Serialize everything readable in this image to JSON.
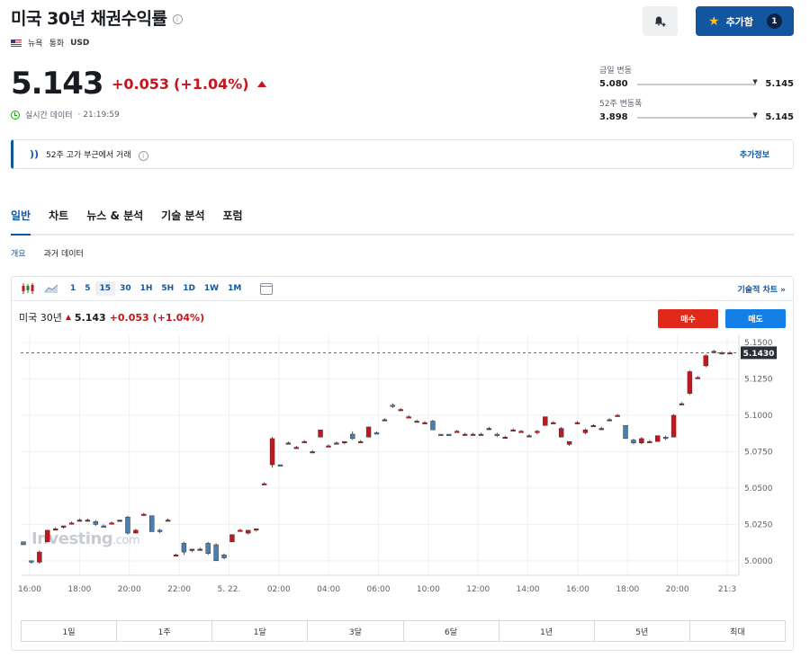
{
  "header": {
    "title": "미국 30년 채권수익률",
    "exchange": "뉴욕",
    "currency_label": "통화",
    "currency": "USD",
    "favorite_label": "추가함",
    "favorite_count": "1"
  },
  "quote": {
    "price": "5.143",
    "change": "+0.053",
    "change_pct": "(+1.04%)",
    "realtime_label": "실시간 데이터",
    "time": "· 21:19:59"
  },
  "ranges": {
    "day": {
      "label": "금일 변동",
      "low": "5.080",
      "high": "5.145",
      "position": 1.0
    },
    "week52": {
      "label": "52주 변동폭",
      "low": "3.898",
      "high": "5.145",
      "position": 1.0
    }
  },
  "alert": {
    "text": "52주 고가 부근에서 거래",
    "more": "추가정보"
  },
  "tabs": [
    "일반",
    "차트",
    "뉴스 & 분석",
    "기술 분석",
    "포럼"
  ],
  "sub_tabs": [
    "개요",
    "과거 데이터"
  ],
  "toolbar": {
    "timeframes": [
      "1",
      "5",
      "15",
      "30",
      "1H",
      "5H",
      "1D",
      "1W",
      "1M"
    ],
    "selected_timeframe": "15",
    "tech_chart": "기술적 차트 »"
  },
  "chart_header": {
    "name": "미국 30년",
    "price": "5.143",
    "change": "+0.053",
    "change_pct": "(+1.04%)",
    "buy": "매수",
    "sell": "매도"
  },
  "watermark": {
    "brand": "Investing",
    "suffix": ".com"
  },
  "periods": [
    "1일",
    "1주",
    "1달",
    "3달",
    "6달",
    "1년",
    "5년",
    "최대"
  ],
  "colors": {
    "up": "#c4161c",
    "down": "#4a7fb5",
    "accent": "#1256a0"
  },
  "chart_data": {
    "type": "candlestick",
    "interval": "15",
    "x_ticks": [
      "16:00",
      "18:00",
      "20:00",
      "22:00",
      "5. 22.",
      "02:00",
      "04:00",
      "06:00",
      "10:00",
      "12:00",
      "14:00",
      "16:00",
      "18:00",
      "20:00",
      "21:3"
    ],
    "y_ticks": [
      "5.0000",
      "5.0250",
      "5.0500",
      "5.0750",
      "5.1000",
      "5.1250",
      "5.1500"
    ],
    "ylim": [
      4.99,
      5.155
    ],
    "last_price_label": "5.1430",
    "ohlc": [
      [
        5.013,
        5.013,
        5.011,
        5.011
      ],
      [
        5.0,
        5.0,
        4.998,
        4.999
      ],
      [
        4.999,
        5.007,
        4.998,
        5.006
      ],
      [
        5.013,
        5.021,
        5.013,
        5.021
      ],
      [
        5.021,
        5.023,
        5.021,
        5.022
      ],
      [
        5.023,
        5.024,
        5.022,
        5.024
      ],
      [
        5.026,
        5.027,
        5.025,
        5.026
      ],
      [
        5.028,
        5.029,
        5.027,
        5.028
      ],
      [
        5.028,
        5.029,
        5.028,
        5.028
      ],
      [
        5.027,
        5.028,
        5.024,
        5.025
      ],
      [
        5.024,
        5.025,
        5.023,
        5.023
      ],
      [
        5.026,
        5.027,
        5.025,
        5.026
      ],
      [
        5.027,
        5.028,
        5.027,
        5.028
      ],
      [
        5.03,
        5.031,
        5.018,
        5.019
      ],
      [
        5.019,
        5.022,
        5.019,
        5.021
      ],
      [
        5.032,
        5.033,
        5.031,
        5.032
      ],
      [
        5.031,
        5.031,
        5.02,
        5.02
      ],
      [
        5.021,
        5.022,
        5.019,
        5.02
      ],
      [
        5.028,
        5.029,
        5.028,
        5.028
      ],
      [
        5.004,
        5.005,
        5.003,
        5.004
      ],
      [
        5.012,
        5.013,
        5.004,
        5.006
      ],
      [
        5.007,
        5.008,
        5.006,
        5.008
      ],
      [
        5.008,
        5.009,
        5.007,
        5.008
      ],
      [
        5.012,
        5.013,
        5.004,
        5.005
      ],
      [
        5.011,
        5.012,
        5.0,
        5.0
      ],
      [
        5.004,
        5.005,
        5.001,
        5.002
      ],
      [
        5.013,
        5.018,
        5.013,
        5.018
      ],
      [
        5.021,
        5.022,
        5.02,
        5.021
      ],
      [
        5.019,
        5.021,
        5.018,
        5.021
      ],
      [
        5.021,
        5.022,
        5.02,
        5.022
      ],
      [
        5.053,
        5.054,
        5.052,
        5.053
      ],
      [
        5.066,
        5.085,
        5.064,
        5.084
      ],
      [
        5.066,
        5.066,
        5.065,
        5.065
      ],
      [
        5.081,
        5.082,
        5.08,
        5.081
      ],
      [
        5.078,
        5.079,
        5.077,
        5.078
      ],
      [
        5.082,
        5.083,
        5.081,
        5.082
      ],
      [
        5.075,
        5.076,
        5.074,
        5.075
      ],
      [
        5.085,
        5.09,
        5.085,
        5.09
      ],
      [
        5.079,
        5.08,
        5.078,
        5.079
      ],
      [
        5.081,
        5.082,
        5.08,
        5.081
      ],
      [
        5.081,
        5.082,
        5.08,
        5.082
      ],
      [
        5.087,
        5.089,
        5.083,
        5.084
      ],
      [
        5.082,
        5.083,
        5.081,
        5.082
      ],
      [
        5.085,
        5.092,
        5.085,
        5.092
      ],
      [
        5.088,
        5.089,
        5.087,
        5.087
      ],
      [
        5.097,
        5.098,
        5.096,
        5.097
      ],
      [
        5.107,
        5.108,
        5.105,
        5.106
      ],
      [
        5.104,
        5.105,
        5.103,
        5.104
      ],
      [
        5.099,
        5.1,
        5.098,
        5.099
      ],
      [
        5.096,
        5.097,
        5.095,
        5.096
      ],
      [
        5.095,
        5.096,
        5.094,
        5.095
      ],
      [
        5.096,
        5.097,
        5.09,
        5.09
      ],
      [
        5.087,
        5.087,
        5.086,
        5.086
      ],
      [
        5.087,
        5.087,
        5.086,
        5.086
      ],
      [
        5.089,
        5.09,
        5.088,
        5.089
      ],
      [
        5.087,
        5.088,
        5.086,
        5.087
      ],
      [
        5.087,
        5.088,
        5.086,
        5.087
      ],
      [
        5.087,
        5.088,
        5.086,
        5.087
      ],
      [
        5.091,
        5.092,
        5.09,
        5.091
      ],
      [
        5.087,
        5.088,
        5.085,
        5.086
      ],
      [
        5.085,
        5.086,
        5.084,
        5.085
      ],
      [
        5.09,
        5.091,
        5.089,
        5.09
      ],
      [
        5.089,
        5.09,
        5.088,
        5.089
      ],
      [
        5.086,
        5.087,
        5.085,
        5.086
      ],
      [
        5.089,
        5.09,
        5.087,
        5.089
      ],
      [
        5.093,
        5.099,
        5.093,
        5.099
      ],
      [
        5.095,
        5.096,
        5.094,
        5.095
      ],
      [
        5.085,
        5.092,
        5.085,
        5.091
      ],
      [
        5.08,
        5.082,
        5.079,
        5.082
      ],
      [
        5.095,
        5.096,
        5.094,
        5.095
      ],
      [
        5.088,
        5.091,
        5.087,
        5.09
      ],
      [
        5.093,
        5.094,
        5.092,
        5.093
      ],
      [
        5.091,
        5.092,
        5.09,
        5.091
      ],
      [
        5.097,
        5.098,
        5.096,
        5.097
      ],
      [
        5.1,
        5.101,
        5.099,
        5.1
      ],
      [
        5.093,
        5.093,
        5.084,
        5.084
      ],
      [
        5.083,
        5.084,
        5.08,
        5.081
      ],
      [
        5.081,
        5.085,
        5.08,
        5.084
      ],
      [
        5.082,
        5.083,
        5.081,
        5.082
      ],
      [
        5.082,
        5.086,
        5.082,
        5.086
      ],
      [
        5.085,
        5.086,
        5.083,
        5.084
      ],
      [
        5.085,
        5.101,
        5.085,
        5.1
      ],
      [
        5.108,
        5.109,
        5.107,
        5.108
      ],
      [
        5.115,
        5.131,
        5.114,
        5.13
      ],
      [
        5.126,
        5.127,
        5.125,
        5.126
      ],
      [
        5.134,
        5.142,
        5.133,
        5.141
      ],
      [
        5.144,
        5.145,
        5.143,
        5.144
      ],
      [
        5.143,
        5.144,
        5.142,
        5.143
      ],
      [
        5.143,
        5.144,
        5.142,
        5.143
      ]
    ]
  }
}
